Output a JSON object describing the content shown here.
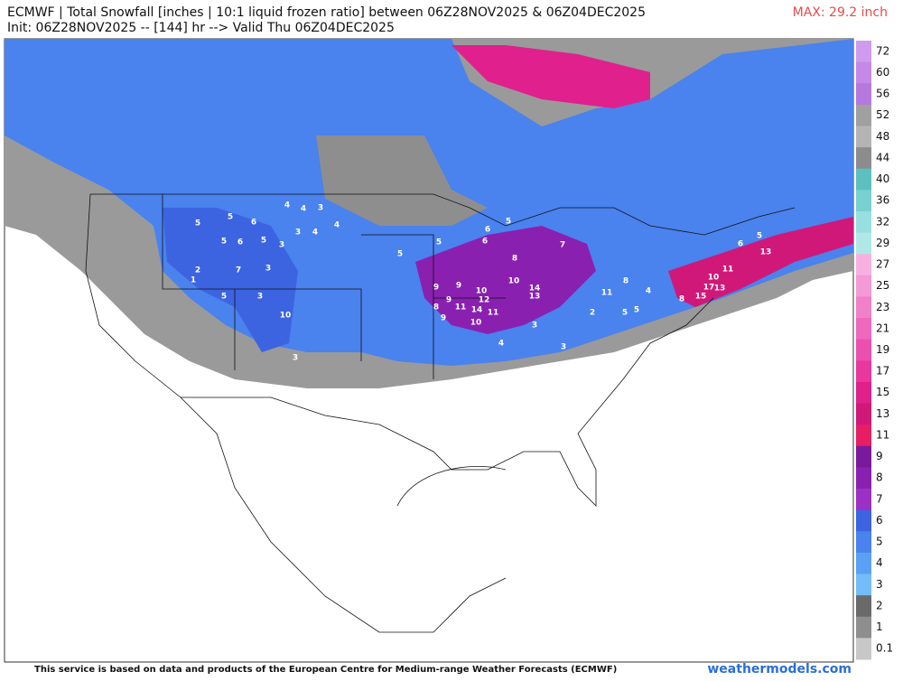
{
  "header": {
    "title": "ECMWF | Total Snowfall [inches | 10:1 liquid frozen ratio] between 06Z28NOV2025 & 06Z04DEC2025",
    "subtitle": "Init: 06Z28NOV2025 -- [144] hr --> Valid Thu 06Z04DEC2025",
    "max_label": "MAX: 29.2 inch"
  },
  "legend": {
    "levels": [
      72,
      60,
      56,
      52,
      48,
      44,
      40,
      36,
      32,
      29,
      27,
      25,
      23,
      21,
      19,
      17,
      15,
      13,
      11,
      9,
      8,
      7,
      6,
      5,
      4,
      3,
      2,
      1,
      0.1
    ],
    "colors": [
      "#cf9bef",
      "#c388e8",
      "#b478de",
      "#a0a0a0",
      "#b4b4b4",
      "#8c8c8c",
      "#5cc0c0",
      "#78d0d0",
      "#98e0e0",
      "#b0e8e8",
      "#f8b0e0",
      "#f49ad6",
      "#f080c8",
      "#ee68bc",
      "#ec50ae",
      "#e8389e",
      "#e0208c",
      "#d01878",
      "#e81e64",
      "#7a1a9a",
      "#8a20b0",
      "#9c30c4",
      "#3c64e0",
      "#4a82ee",
      "#5aa0f4",
      "#74bcf8",
      "#6a6a6a",
      "#8e8e8e",
      "#c8c8c8"
    ]
  },
  "map_labels": [
    5,
    5,
    6,
    4,
    4,
    3,
    4,
    3,
    5,
    6,
    5,
    3,
    4,
    2,
    1,
    7,
    3,
    5,
    3,
    10,
    3,
    5,
    5,
    6,
    5,
    9,
    9,
    10,
    12,
    11,
    14,
    11,
    10,
    9,
    8,
    13,
    14,
    10,
    8,
    7,
    11,
    8,
    5,
    10,
    15,
    17,
    13,
    11,
    13,
    8,
    6,
    5,
    4,
    3,
    4,
    3,
    5,
    2,
    6,
    9
  ],
  "footer": {
    "note": "This service is based on data and products of the European Centre for Medium-range Weather Forecasts (ECMWF)",
    "site": "weathermodels.com"
  }
}
